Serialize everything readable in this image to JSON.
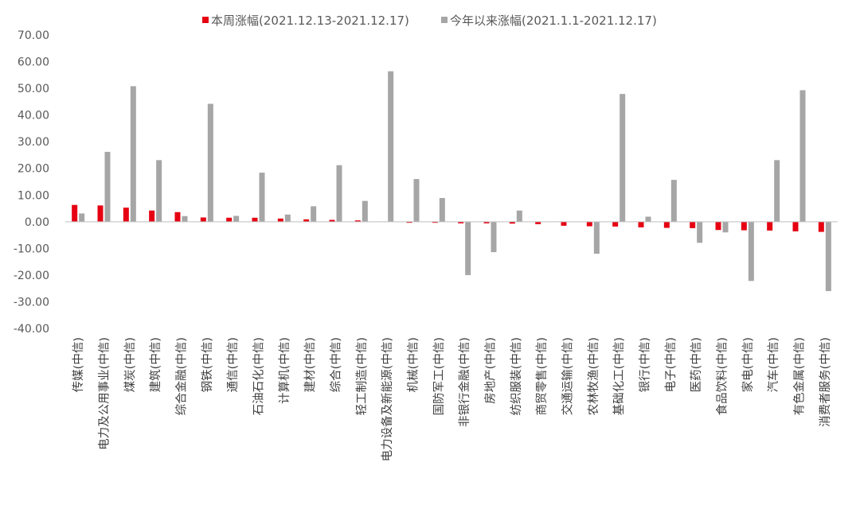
{
  "chart_data": {
    "type": "bar",
    "ylim": [
      -40,
      70
    ],
    "ytick_step": 10,
    "yticks": [
      "70.00",
      "60.00",
      "50.00",
      "40.00",
      "30.00",
      "20.00",
      "10.00",
      "0.00",
      "-10.00",
      "-20.00",
      "-30.00",
      "-40.00"
    ],
    "legend_position": "top-center",
    "grid": false,
    "categories": [
      "传媒(中信)",
      "电力及公用事业(中信)",
      "煤炭(中信)",
      "建筑(中信)",
      "综合金融(中信)",
      "钢铁(中信)",
      "通信(中信)",
      "石油石化(中信)",
      "计算机(中信)",
      "建材(中信)",
      "综合(中信)",
      "轻工制造(中信)",
      "电力设备及新能源(中信)",
      "机械(中信)",
      "国防军工(中信)",
      "非银行金融(中信)",
      "房地产(中信)",
      "纺织服装(中信)",
      "商贸零售(中信)",
      "交通运输(中信)",
      "农林牧渔(中信)",
      "基础化工(中信)",
      "银行(中信)",
      "电子(中信)",
      "医药(中信)",
      "食品饮料(中信)",
      "家电(中信)",
      "汽车(中信)",
      "有色金属(中信)",
      "消费者服务(中信)"
    ],
    "series": [
      {
        "name": "本周涨幅(2021.12.13-2021.12.17)",
        "color": "#e60012",
        "values": [
          6.3,
          6.1,
          5.3,
          4.2,
          3.6,
          1.6,
          1.5,
          1.5,
          1.2,
          0.9,
          0.7,
          0.5,
          0.1,
          -0.4,
          -0.4,
          -0.6,
          -0.6,
          -0.7,
          -0.9,
          -1.5,
          -1.7,
          -1.8,
          -2.1,
          -2.3,
          -2.4,
          -3.1,
          -3.2,
          -3.3,
          -3.6,
          -3.8
        ]
      },
      {
        "name": "今年以来涨幅(2021.1.1-2021.12.17)",
        "color": "#a6a6a6",
        "values": [
          3.1,
          26.2,
          50.8,
          23.1,
          2.1,
          44.2,
          2.2,
          18.4,
          2.7,
          5.8,
          21.2,
          7.8,
          56.4,
          16.0,
          8.9,
          -20.0,
          -11.4,
          4.2,
          0.0,
          0.0,
          -12.0,
          47.9,
          1.9,
          15.7,
          -7.9,
          -4.0,
          -22.2,
          23.1,
          49.3,
          -26.0
        ]
      }
    ]
  }
}
